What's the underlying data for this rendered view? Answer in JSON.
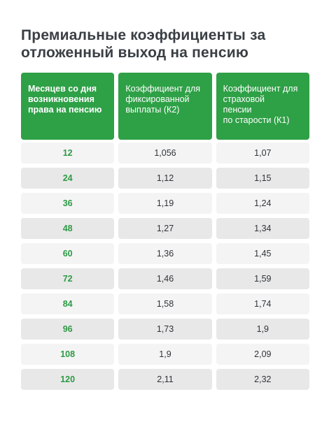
{
  "title": {
    "line1": "Премиальные коэффициенты за",
    "line2": "отложенный выход на пенсию"
  },
  "headers": {
    "col1": [
      "Месяцев со дня",
      "возникновения",
      "права на пенсию"
    ],
    "col2": [
      "Коэффициент для",
      "фиксированной",
      "выплаты (К2)"
    ],
    "col3": [
      "Коэффициент для",
      "страховой",
      "пенсии",
      "по старости (К1)"
    ]
  },
  "rows": [
    {
      "months": "12",
      "k2": "1,056",
      "k1": "1,07"
    },
    {
      "months": "24",
      "k2": "1,12",
      "k1": "1,15"
    },
    {
      "months": "36",
      "k2": "1,19",
      "k1": "1,24"
    },
    {
      "months": "48",
      "k2": "1,27",
      "k1": "1,34"
    },
    {
      "months": "60",
      "k2": "1,36",
      "k1": "1,45"
    },
    {
      "months": "72",
      "k2": "1,46",
      "k1": "1,59"
    },
    {
      "months": "84",
      "k2": "1,58",
      "k1": "1,74"
    },
    {
      "months": "96",
      "k2": "1,73",
      "k1": "1,9"
    },
    {
      "months": "108",
      "k2": "1,9",
      "k1": "2,09"
    },
    {
      "months": "120",
      "k2": "2,11",
      "k1": "2,32"
    }
  ],
  "colors": {
    "accent_green": "#2ea046",
    "months_text": "#2e9a45",
    "row_light": "#f4f4f4",
    "row_dark": "#e8e8e8"
  }
}
